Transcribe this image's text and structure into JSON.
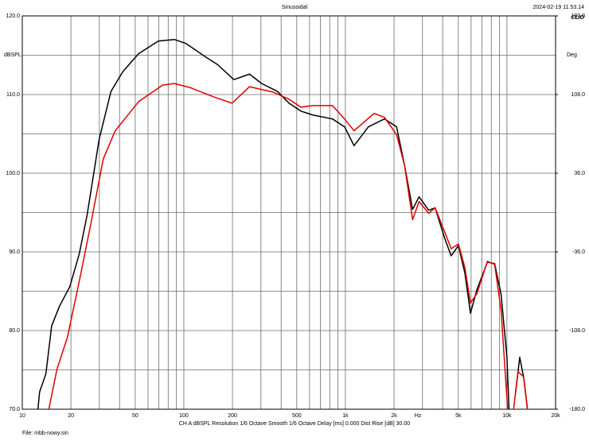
{
  "chart_data": {
    "type": "line",
    "title": "Sinusoidal",
    "timestamp": "2024-02-19 11.53.14",
    "logo": "CLIO",
    "ylabel": "dBSPL",
    "y2label": "Deg",
    "xlabel": "Hz",
    "footer": "CH A   dBSPL   Resolution 1/6 Octave   Smooth 1/6 Octave   Delay [ms] 0.000   Dist Rise [dB] 30.00",
    "file": "File: mbb-nowy.sin",
    "xscale": "log",
    "xlim": [
      10,
      20000
    ],
    "xticks": [
      10,
      20,
      50,
      100,
      200,
      500,
      {
        "value": 1000,
        "label": "1k"
      },
      {
        "value": 2000,
        "label": "2k"
      },
      {
        "value": 5000,
        "label": "5k"
      },
      {
        "value": 10000,
        "label": "10k"
      },
      {
        "value": 20000,
        "label": "20k"
      }
    ],
    "xgrid_minor": [
      30,
      40,
      60,
      70,
      80,
      90,
      300,
      400,
      600,
      700,
      800,
      900,
      3000,
      4000,
      6000,
      7000,
      8000,
      9000
    ],
    "ylim": [
      70,
      120
    ],
    "yticks": [
      {
        "value": 70,
        "label": "70.0"
      },
      {
        "value": 80,
        "label": "80.0"
      },
      {
        "value": 90,
        "label": "90.0"
      },
      {
        "value": 100,
        "label": "100.0"
      },
      {
        "value": 110,
        "label": "110.0"
      },
      {
        "value": 120,
        "label": "120.0"
      }
    ],
    "ygrid_minor": [
      75,
      85,
      95,
      105,
      115
    ],
    "y2lim": [
      -180,
      180
    ],
    "y2ticks": [
      {
        "value": -180,
        "label": "-180.0"
      },
      {
        "value": -108,
        "label": "-108.0"
      },
      {
        "value": -36,
        "label": "-36.0"
      },
      {
        "value": 36,
        "label": "36.0"
      },
      {
        "value": 108,
        "label": "108.0"
      },
      {
        "value": 180,
        "label": "180.0"
      }
    ],
    "grid": true,
    "series": [
      {
        "color": "#000000",
        "x": [
          12.5,
          12.8,
          14,
          15.2,
          17,
          19.7,
          22.5,
          25.2,
          29.9,
          35.4,
          41.9,
          52.5,
          69.6,
          87.4,
          103,
          136,
          162,
          204,
          255,
          303,
          380,
          448,
          530,
          629,
          832,
          988,
          1132,
          1389,
          1745,
          2074,
          2324,
          2606,
          2859,
          3279,
          3594,
          4122,
          4518,
          5009,
          5491,
          5946,
          6519,
          7570,
          8395,
          9197,
          10000,
          10300,
          10800,
          11300,
          12000,
          12700,
          13400
        ],
        "values": [
          70,
          72.2,
          74.5,
          80.6,
          83.1,
          85.6,
          89.7,
          94.7,
          104.3,
          110.4,
          112.9,
          115.2,
          116.8,
          117,
          116.5,
          114.8,
          113.8,
          111.9,
          112.6,
          111.4,
          110.4,
          108.9,
          107.9,
          107.4,
          106.9,
          105.9,
          103.5,
          105.9,
          106.9,
          105.9,
          101,
          95.4,
          97,
          95.3,
          95.6,
          91.7,
          89.5,
          90.8,
          87.3,
          82.2,
          85.2,
          88.7,
          88.5,
          84.6,
          76.6,
          70,
          null,
          72,
          76.6,
          74,
          70
        ]
      },
      {
        "color": "#e00000",
        "x": [
          14.6,
          16.4,
          19,
          22.5,
          26.7,
          31.7,
          37.6,
          52.5,
          73.9,
          87.4,
          109,
          153,
          199,
          255,
          358,
          448,
          530,
          629,
          832,
          988,
          1132,
          1505,
          1745,
          2074,
          2324,
          2606,
          2859,
          3279,
          3594,
          4122,
          4518,
          5009,
          5491,
          5946,
          6519,
          7570,
          8395,
          9197,
          10100,
          10600,
          11000,
          11700,
          12700,
          13400
        ],
        "values": [
          70,
          75.1,
          79.1,
          86.2,
          93.8,
          101.8,
          105.4,
          109.1,
          111.2,
          111.4,
          110.9,
          109.7,
          108.9,
          111,
          110.3,
          109.4,
          108.4,
          108.6,
          108.6,
          106.9,
          105.4,
          107.6,
          107.1,
          104.9,
          101,
          94.1,
          96.4,
          94.9,
          95.6,
          92.5,
          90.4,
          91,
          88,
          83.5,
          84.7,
          88.8,
          88.4,
          82.6,
          70,
          null,
          70,
          74.8,
          74.1,
          70
        ]
      }
    ]
  }
}
